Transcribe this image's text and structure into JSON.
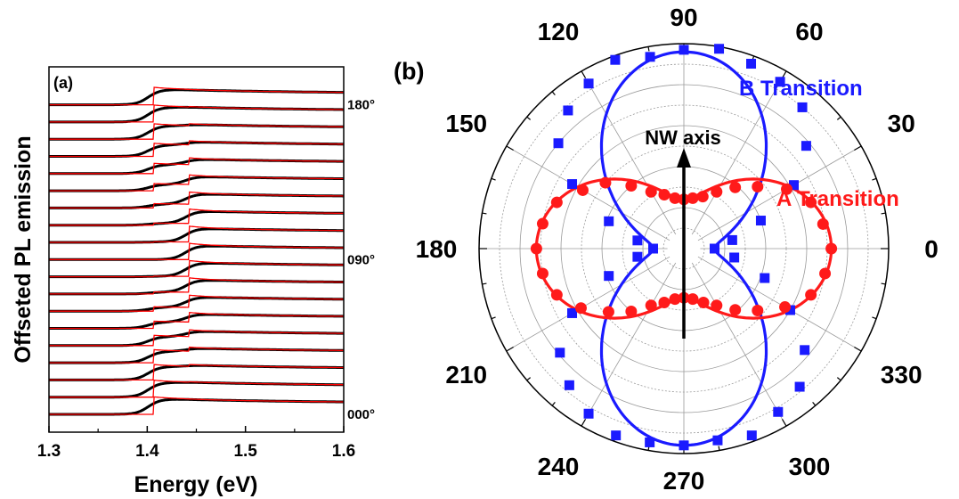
{
  "chart_data": [
    {
      "type": "line",
      "panel_label": "(a)",
      "xlabel": "Energy (eV)",
      "ylabel": "Offseted PL emission",
      "xlim": [
        1.3,
        1.6
      ],
      "x_ticks": [
        "1.3",
        "1.4",
        "1.5",
        "1.6"
      ],
      "offset_labels": [
        {
          "label": "180°",
          "index": 18
        },
        {
          "label": "090°",
          "index": 9
        },
        {
          "label": "000°",
          "index": 0
        }
      ],
      "series_count": 19,
      "series_colors": {
        "data": "#000000",
        "fit": "#ff0000"
      },
      "edge_A_eV": 1.407,
      "edge_B_eV": 1.443,
      "grid": false
    },
    {
      "type": "scatter",
      "projection": "polar",
      "panel_label": "(b)",
      "angular_ticks": [
        "0",
        "30",
        "60",
        "90",
        "120",
        "150",
        "180",
        "210",
        "240",
        "270",
        "300",
        "330"
      ],
      "series": [
        {
          "name": "B Transition",
          "color": "#1a1aff",
          "marker": "square",
          "theta_deg": [
            0,
            10,
            20,
            30,
            40,
            50,
            60,
            70,
            80,
            90,
            100,
            110,
            120,
            130,
            140,
            150,
            160,
            170,
            180,
            190,
            200,
            210,
            220,
            230,
            240,
            250,
            260,
            270,
            280,
            290,
            300,
            310,
            320,
            330,
            340,
            350
          ],
          "r": [
            0.15,
            0.24,
            0.4,
            0.62,
            0.78,
            0.9,
            0.94,
            0.96,
            0.99,
            0.97,
            0.95,
            0.98,
            0.93,
            0.88,
            0.8,
            0.63,
            0.39,
            0.23,
            0.15,
            0.23,
            0.39,
            0.63,
            0.79,
            0.87,
            0.93,
            0.97,
            0.96,
            0.96,
            0.95,
            0.97,
            0.92,
            0.88,
            0.77,
            0.6,
            0.42,
            0.25
          ]
        },
        {
          "name": "A Transition",
          "color": "#ff1a1a",
          "marker": "circle",
          "theta_deg": [
            0,
            10,
            20,
            30,
            40,
            50,
            60,
            70,
            80,
            90,
            100,
            110,
            120,
            130,
            140,
            150,
            160,
            170,
            180,
            190,
            200,
            210,
            220,
            230,
            240,
            250,
            260,
            270,
            280,
            290,
            300,
            310,
            320,
            330,
            340,
            350
          ],
          "r": [
            0.72,
            0.69,
            0.66,
            0.58,
            0.47,
            0.39,
            0.32,
            0.27,
            0.25,
            0.24,
            0.25,
            0.28,
            0.32,
            0.4,
            0.5,
            0.57,
            0.66,
            0.7,
            0.72,
            0.7,
            0.66,
            0.58,
            0.48,
            0.4,
            0.32,
            0.28,
            0.25,
            0.24,
            0.25,
            0.28,
            0.32,
            0.39,
            0.47,
            0.57,
            0.66,
            0.7
          ]
        }
      ],
      "annotation": {
        "text": "NW axis",
        "direction_deg": 90
      },
      "grid": true
    }
  ]
}
